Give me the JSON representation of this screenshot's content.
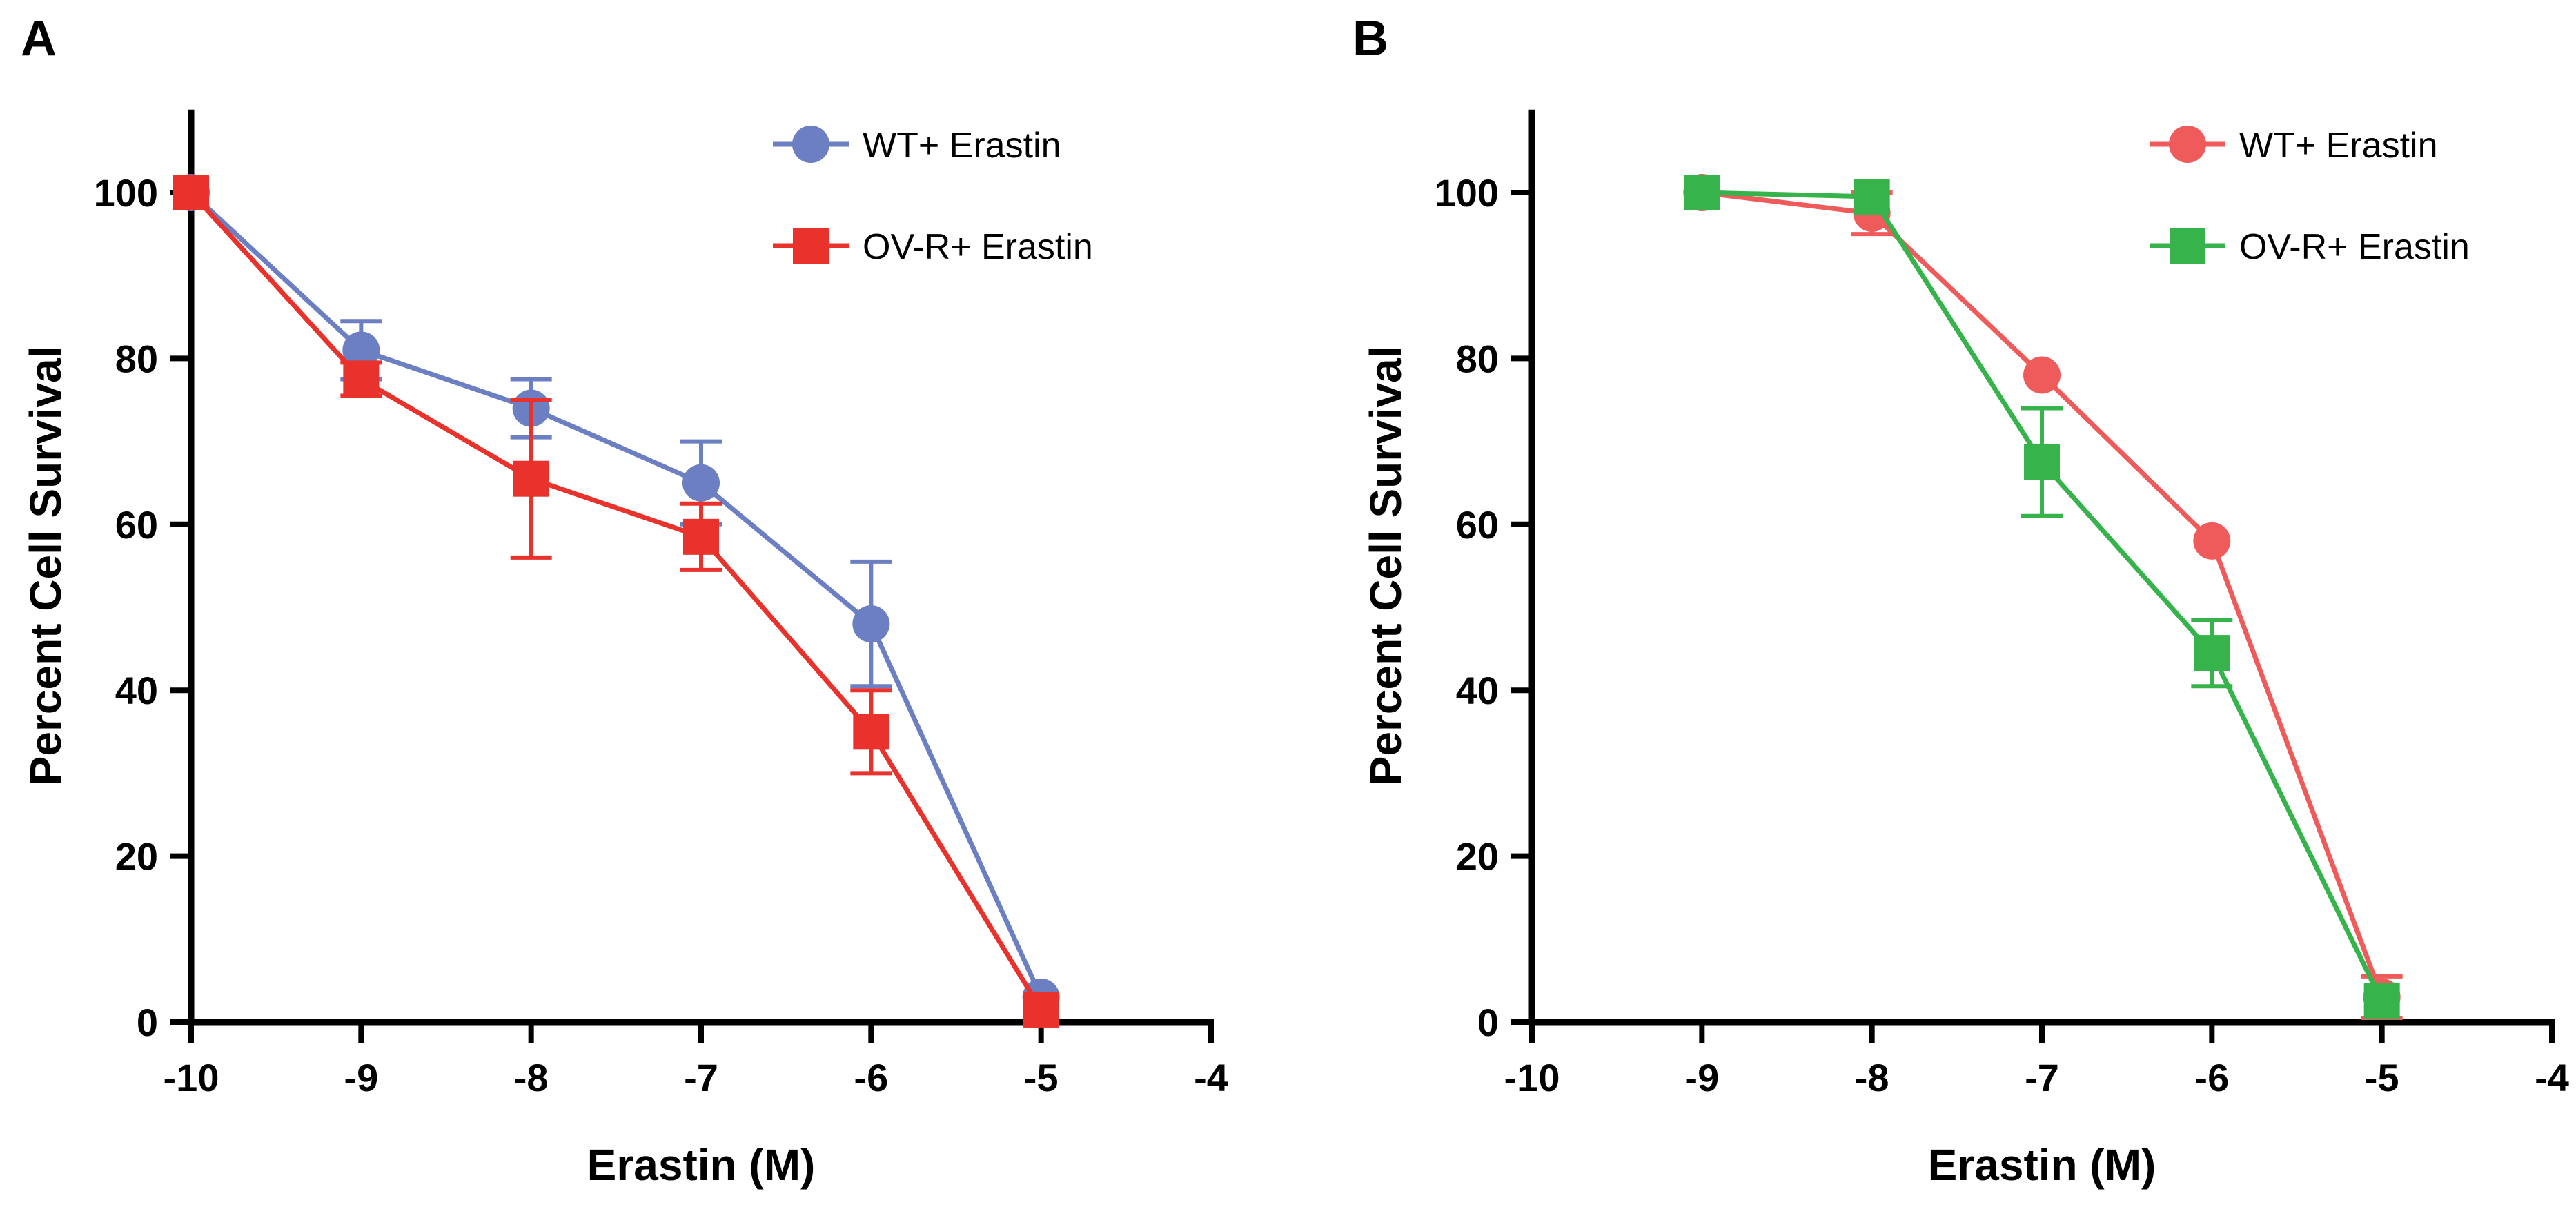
{
  "figure": {
    "panels": [
      {
        "label": "A",
        "chart_data": {
          "type": "line",
          "title": "",
          "xlabel": "Erastin (M)",
          "ylabel": "Percent Cell Survival",
          "xlim": [
            -10,
            -4
          ],
          "ylim": [
            0,
            110
          ],
          "xticks": [
            -10,
            -9,
            -8,
            -7,
            -6,
            -5,
            -4
          ],
          "yticks": [
            0,
            20,
            40,
            60,
            80,
            100
          ],
          "grid": false,
          "legend_position": "top-right",
          "series": [
            {
              "name": "WT+ Erastin",
              "color": "#6b7fc2",
              "marker": "circle",
              "x": [
                -10,
                -9,
                -8,
                -7,
                -6,
                -5
              ],
              "y": [
                100,
                81,
                74,
                65,
                48,
                3
              ],
              "err": [
                0,
                3.5,
                3.5,
                5,
                7.5,
                0
              ]
            },
            {
              "name": "OV-R+ Erastin",
              "color": "#e8322b",
              "marker": "square",
              "x": [
                -10,
                -9,
                -8,
                -7,
                -6,
                -5
              ],
              "y": [
                100,
                77.5,
                65.5,
                58.5,
                35,
                1.5
              ],
              "err": [
                0,
                2,
                9.5,
                4,
                5,
                0
              ]
            }
          ]
        }
      },
      {
        "label": "B",
        "chart_data": {
          "type": "line",
          "title": "",
          "xlabel": "Erastin (M)",
          "ylabel": "Percent Cell Survival",
          "xlim": [
            -10,
            -4
          ],
          "ylim": [
            0,
            110
          ],
          "xticks": [
            -10,
            -9,
            -8,
            -7,
            -6,
            -5,
            -4
          ],
          "yticks": [
            0,
            20,
            40,
            60,
            80,
            100
          ],
          "grid": false,
          "legend_position": "top-right",
          "series": [
            {
              "name": "WT+ Erastin",
              "color": "#ef5b5b",
              "marker": "circle",
              "x": [
                -9,
                -8,
                -7,
                -6,
                -5
              ],
              "y": [
                100,
                97.5,
                78,
                58,
                3
              ],
              "err": [
                0,
                2.5,
                0,
                0,
                2.5
              ]
            },
            {
              "name": "OV-R+ Erastin",
              "color": "#36b34a",
              "marker": "square",
              "x": [
                -9,
                -8,
                -7,
                -6,
                -5
              ],
              "y": [
                100,
                99.5,
                67.5,
                44.5,
                2.5
              ],
              "err": [
                0,
                0,
                6.5,
                4,
                0
              ]
            }
          ]
        }
      }
    ]
  }
}
